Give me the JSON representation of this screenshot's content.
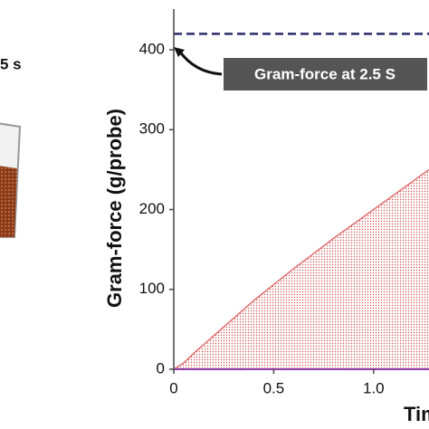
{
  "illustration": {
    "label": "5 s"
  },
  "chart_data": {
    "type": "area",
    "y_label": "Gram-force (g/probe)",
    "x_label": "Tim",
    "x": [
      0,
      0.05,
      0.1,
      0.2,
      0.3,
      0.4,
      0.5,
      0.6,
      0.7,
      0.8,
      0.9,
      1.0,
      1.1,
      1.2,
      1.277
    ],
    "values": [
      0,
      8,
      20,
      42,
      64,
      86,
      106,
      126,
      145,
      164,
      182,
      200,
      218,
      236,
      250
    ],
    "color": "#e07070",
    "xlim": [
      0,
      1.277
    ],
    "ylim": [
      0,
      451
    ],
    "xticks": [
      0,
      0.5,
      {
        "value": 1,
        "label": "1.0"
      }
    ],
    "yticks": [
      0,
      100,
      200,
      300,
      400
    ],
    "annotation": {
      "text": "Gram-force at 2.5 S",
      "value": 420,
      "color": "#2b2b6b"
    }
  }
}
